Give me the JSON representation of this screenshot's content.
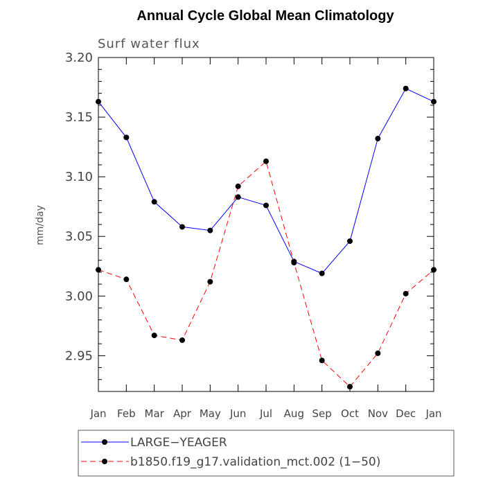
{
  "chart_data": {
    "type": "line",
    "title": "Annual Cycle Global Mean Climatology",
    "subtitle": "Surf water flux",
    "xlabel": "",
    "ylabel": "mm/day",
    "categories": [
      "Jan",
      "Feb",
      "Mar",
      "Apr",
      "May",
      "Jun",
      "Jul",
      "Aug",
      "Sep",
      "Oct",
      "Nov",
      "Dec",
      "Jan"
    ],
    "ylim": [
      2.92,
      3.2
    ],
    "yticks": [
      "3.20",
      "3.15",
      "3.10",
      "3.05",
      "3.00",
      "2.95"
    ],
    "grid": false,
    "legend_position": "bottom",
    "series": [
      {
        "name": "LARGE−YEAGER",
        "color": "#0000ff",
        "dash": "solid",
        "values": [
          3.163,
          3.133,
          3.079,
          3.058,
          3.055,
          3.083,
          3.076,
          3.029,
          3.019,
          3.046,
          3.132,
          3.174,
          3.163
        ]
      },
      {
        "name": "b1850.f19_g17.validation_mct.002 (1−50)",
        "color": "#ff0000",
        "dash": "dashed",
        "values": [
          3.022,
          3.014,
          2.967,
          2.963,
          3.012,
          3.092,
          3.113,
          3.028,
          2.946,
          2.924,
          2.952,
          3.002,
          3.022
        ]
      }
    ]
  }
}
